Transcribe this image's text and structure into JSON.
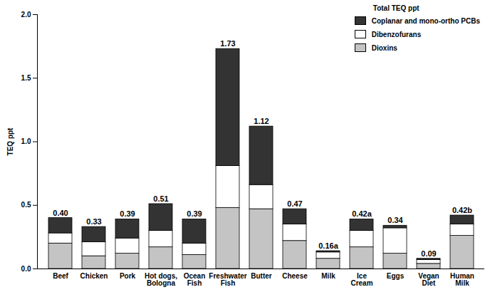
{
  "chart_data": {
    "type": "bar",
    "stacked": true,
    "categories": [
      "Beef",
      "Chicken",
      "Pork",
      "Hot dogs, Bologna",
      "Ocean Fish",
      "Freshwater Fish",
      "Butter",
      "Cheese",
      "Milk",
      "Ice Cream",
      "Eggs",
      "Vegan Diet",
      "Human Milk"
    ],
    "series": [
      {
        "name": "Dioxins",
        "color": "#c4c4c4",
        "values": [
          0.2,
          0.1,
          0.12,
          0.17,
          0.11,
          0.48,
          0.47,
          0.22,
          0.08,
          0.17,
          0.12,
          0.04,
          0.26
        ]
      },
      {
        "name": "Dibenzofurans",
        "color": "#ffffff",
        "values": [
          0.08,
          0.11,
          0.12,
          0.13,
          0.09,
          0.33,
          0.19,
          0.13,
          0.05,
          0.13,
          0.2,
          0.03,
          0.09
        ]
      },
      {
        "name": "Coplanar and mono-ortho PCBs",
        "color": "#333333",
        "values": [
          0.12,
          0.12,
          0.15,
          0.21,
          0.19,
          0.92,
          0.46,
          0.12,
          0.01,
          0.09,
          0.02,
          0.01,
          0.07
        ]
      }
    ],
    "annotations": [
      "0.40",
      "0.33",
      "0.39",
      "0.51",
      "0.39",
      "1.73",
      "1.12",
      "0.47",
      "0.16a",
      "0.42a",
      "0.34",
      "0.09",
      "0.42b"
    ],
    "ylabel": "TEQ ppt",
    "ylim": [
      0,
      2
    ],
    "yticks": [
      {
        "value": 0,
        "label": "0.0"
      },
      0.5,
      {
        "value": 1,
        "label": "1.0"
      },
      1.5,
      {
        "value": 2,
        "label": "2.0"
      }
    ],
    "legend": "top-right",
    "legend_title": "Total TEQ ppt"
  }
}
